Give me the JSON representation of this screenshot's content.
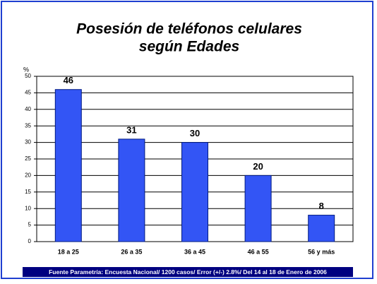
{
  "chart_data": {
    "type": "bar",
    "title": [
      "Posesión de teléfonos celulares",
      "según Edades"
    ],
    "y_label": "%",
    "categories": [
      "18 a 25",
      "26 a 35",
      "36 a 45",
      "46 a 55",
      "56 y más"
    ],
    "values": [
      46,
      31,
      30,
      20,
      8
    ],
    "color": "#3355f5",
    "ylim": [
      0,
      50
    ],
    "yticks": [
      0,
      5,
      10,
      15,
      20,
      25,
      30,
      35,
      40,
      45,
      50
    ],
    "grid": true,
    "source": "Fuente Parametría: Encuesta Nacional/ 1200 casos/ Error (+/-) 2.8%/ Del 14 al 18 de Enero de 2006"
  }
}
